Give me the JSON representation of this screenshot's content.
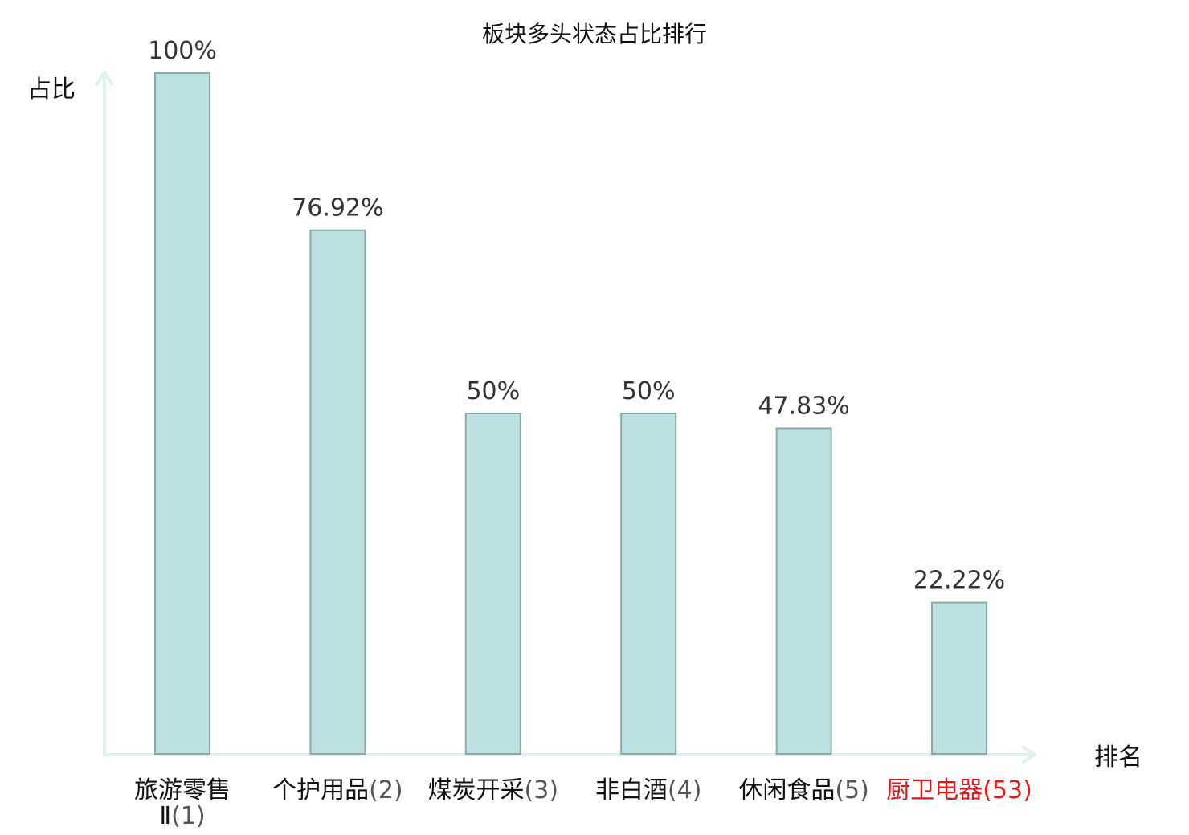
{
  "chart_data": {
    "type": "bar",
    "title": "板块多头状态占比排行",
    "ylabel": "占比",
    "xlabel": "排名",
    "ylim": [
      0,
      100
    ],
    "grid": false,
    "categories": [
      {
        "name": "旅游零售",
        "name_line2": "Ⅱ",
        "rank": "(1)",
        "highlight": false
      },
      {
        "name": "个护用品",
        "rank": "(2)",
        "highlight": false
      },
      {
        "name": "煤炭开采",
        "rank": "(3)",
        "highlight": false
      },
      {
        "name": "非白酒",
        "rank": "(4)",
        "highlight": false
      },
      {
        "name": "休闲食品",
        "rank": "(5)",
        "highlight": false
      },
      {
        "name": "厨卫电器",
        "rank": "(53)",
        "highlight": true
      }
    ],
    "values": [
      100,
      76.92,
      50,
      50,
      47.83,
      22.22
    ],
    "value_labels": [
      "100%",
      "76.92%",
      "50%",
      "50%",
      "47.83%",
      "22.22%"
    ],
    "colors": {
      "bar_fill": "#bde0e2",
      "bar_stroke": "#8aa9ab",
      "axis": "#dff1ef",
      "highlight": "#e01818"
    }
  }
}
